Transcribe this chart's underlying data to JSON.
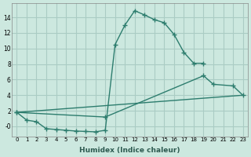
{
  "xlabel": "Humidex (Indice chaleur)",
  "bg_color": "#cce8df",
  "grid_color": "#aaccc4",
  "line_color": "#2d7d6e",
  "xlim": [
    -0.5,
    23.5
  ],
  "ylim": [
    -1.3,
    15.8
  ],
  "xticks": [
    0,
    1,
    2,
    3,
    4,
    5,
    6,
    7,
    8,
    9,
    10,
    11,
    12,
    13,
    14,
    15,
    16,
    17,
    18,
    19,
    20,
    21,
    22,
    23
  ],
  "yticks": [
    0,
    2,
    4,
    6,
    8,
    10,
    12,
    14
  ],
  "ytick_labels": [
    "-0",
    "2",
    "4",
    "6",
    "8",
    "10",
    "12",
    "14"
  ],
  "line1_x": [
    0,
    1,
    2,
    3,
    4,
    5,
    6,
    7,
    8,
    9,
    10,
    11,
    12,
    13,
    14,
    15,
    16,
    17,
    18,
    19
  ],
  "line1_y": [
    1.8,
    0.8,
    0.6,
    -0.3,
    -0.4,
    -0.5,
    -0.6,
    -0.65,
    -0.7,
    -0.5,
    10.5,
    13.0,
    14.85,
    14.3,
    13.7,
    13.3,
    11.8,
    9.5,
    8.1,
    8.1
  ],
  "line2_x": [
    0,
    9,
    19,
    20,
    22,
    23
  ],
  "line2_y": [
    1.8,
    1.2,
    6.5,
    5.4,
    5.2,
    4.0
  ],
  "line3_x": [
    0,
    23
  ],
  "line3_y": [
    1.8,
    4.0
  ]
}
